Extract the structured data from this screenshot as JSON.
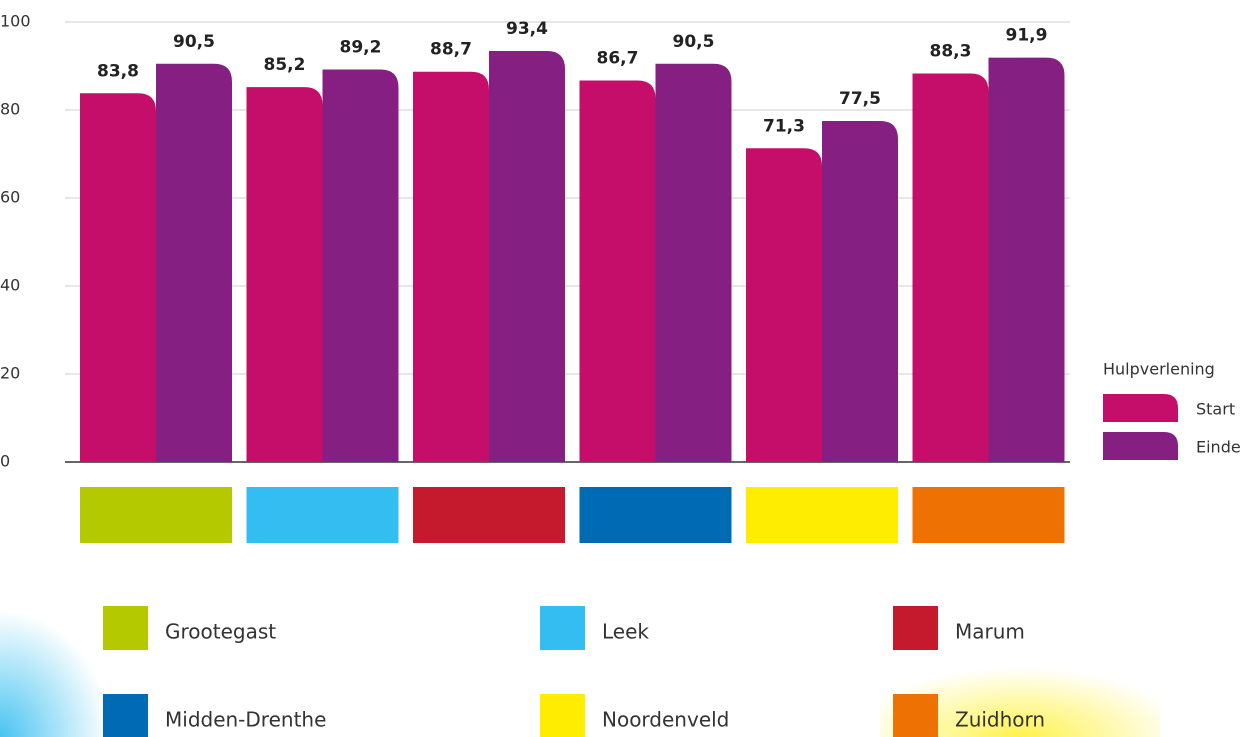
{
  "chart_data": {
    "type": "bar",
    "categories": [
      "Grootegast",
      "Leek",
      "Marum",
      "Midden-Drenthe",
      "Noordenveld",
      "Zuidhorn"
    ],
    "category_colors": [
      "#b5c900",
      "#33bdf0",
      "#c51a2e",
      "#006bb5",
      "#ffed00",
      "#ee7203"
    ],
    "series": [
      {
        "name": "Start",
        "color": "#c50d6a",
        "values": [
          83.8,
          85.2,
          88.7,
          86.7,
          71.3,
          88.3
        ],
        "value_labels": [
          "83,8",
          "85,2",
          "88,7",
          "86,7",
          "71,3",
          "88,3"
        ]
      },
      {
        "name": "Einde",
        "color": "#861f82",
        "values": [
          90.5,
          89.2,
          93.4,
          90.5,
          77.5,
          91.9
        ],
        "value_labels": [
          "90,5",
          "89,2",
          "93,4",
          "90,5",
          "77,5",
          "91,9"
        ]
      }
    ],
    "legend_title": "Hulpverlening",
    "legend": "right",
    "ylim": [
      0,
      100
    ],
    "yticks": [
      0,
      20,
      40,
      60,
      80,
      100
    ],
    "grid": true
  }
}
